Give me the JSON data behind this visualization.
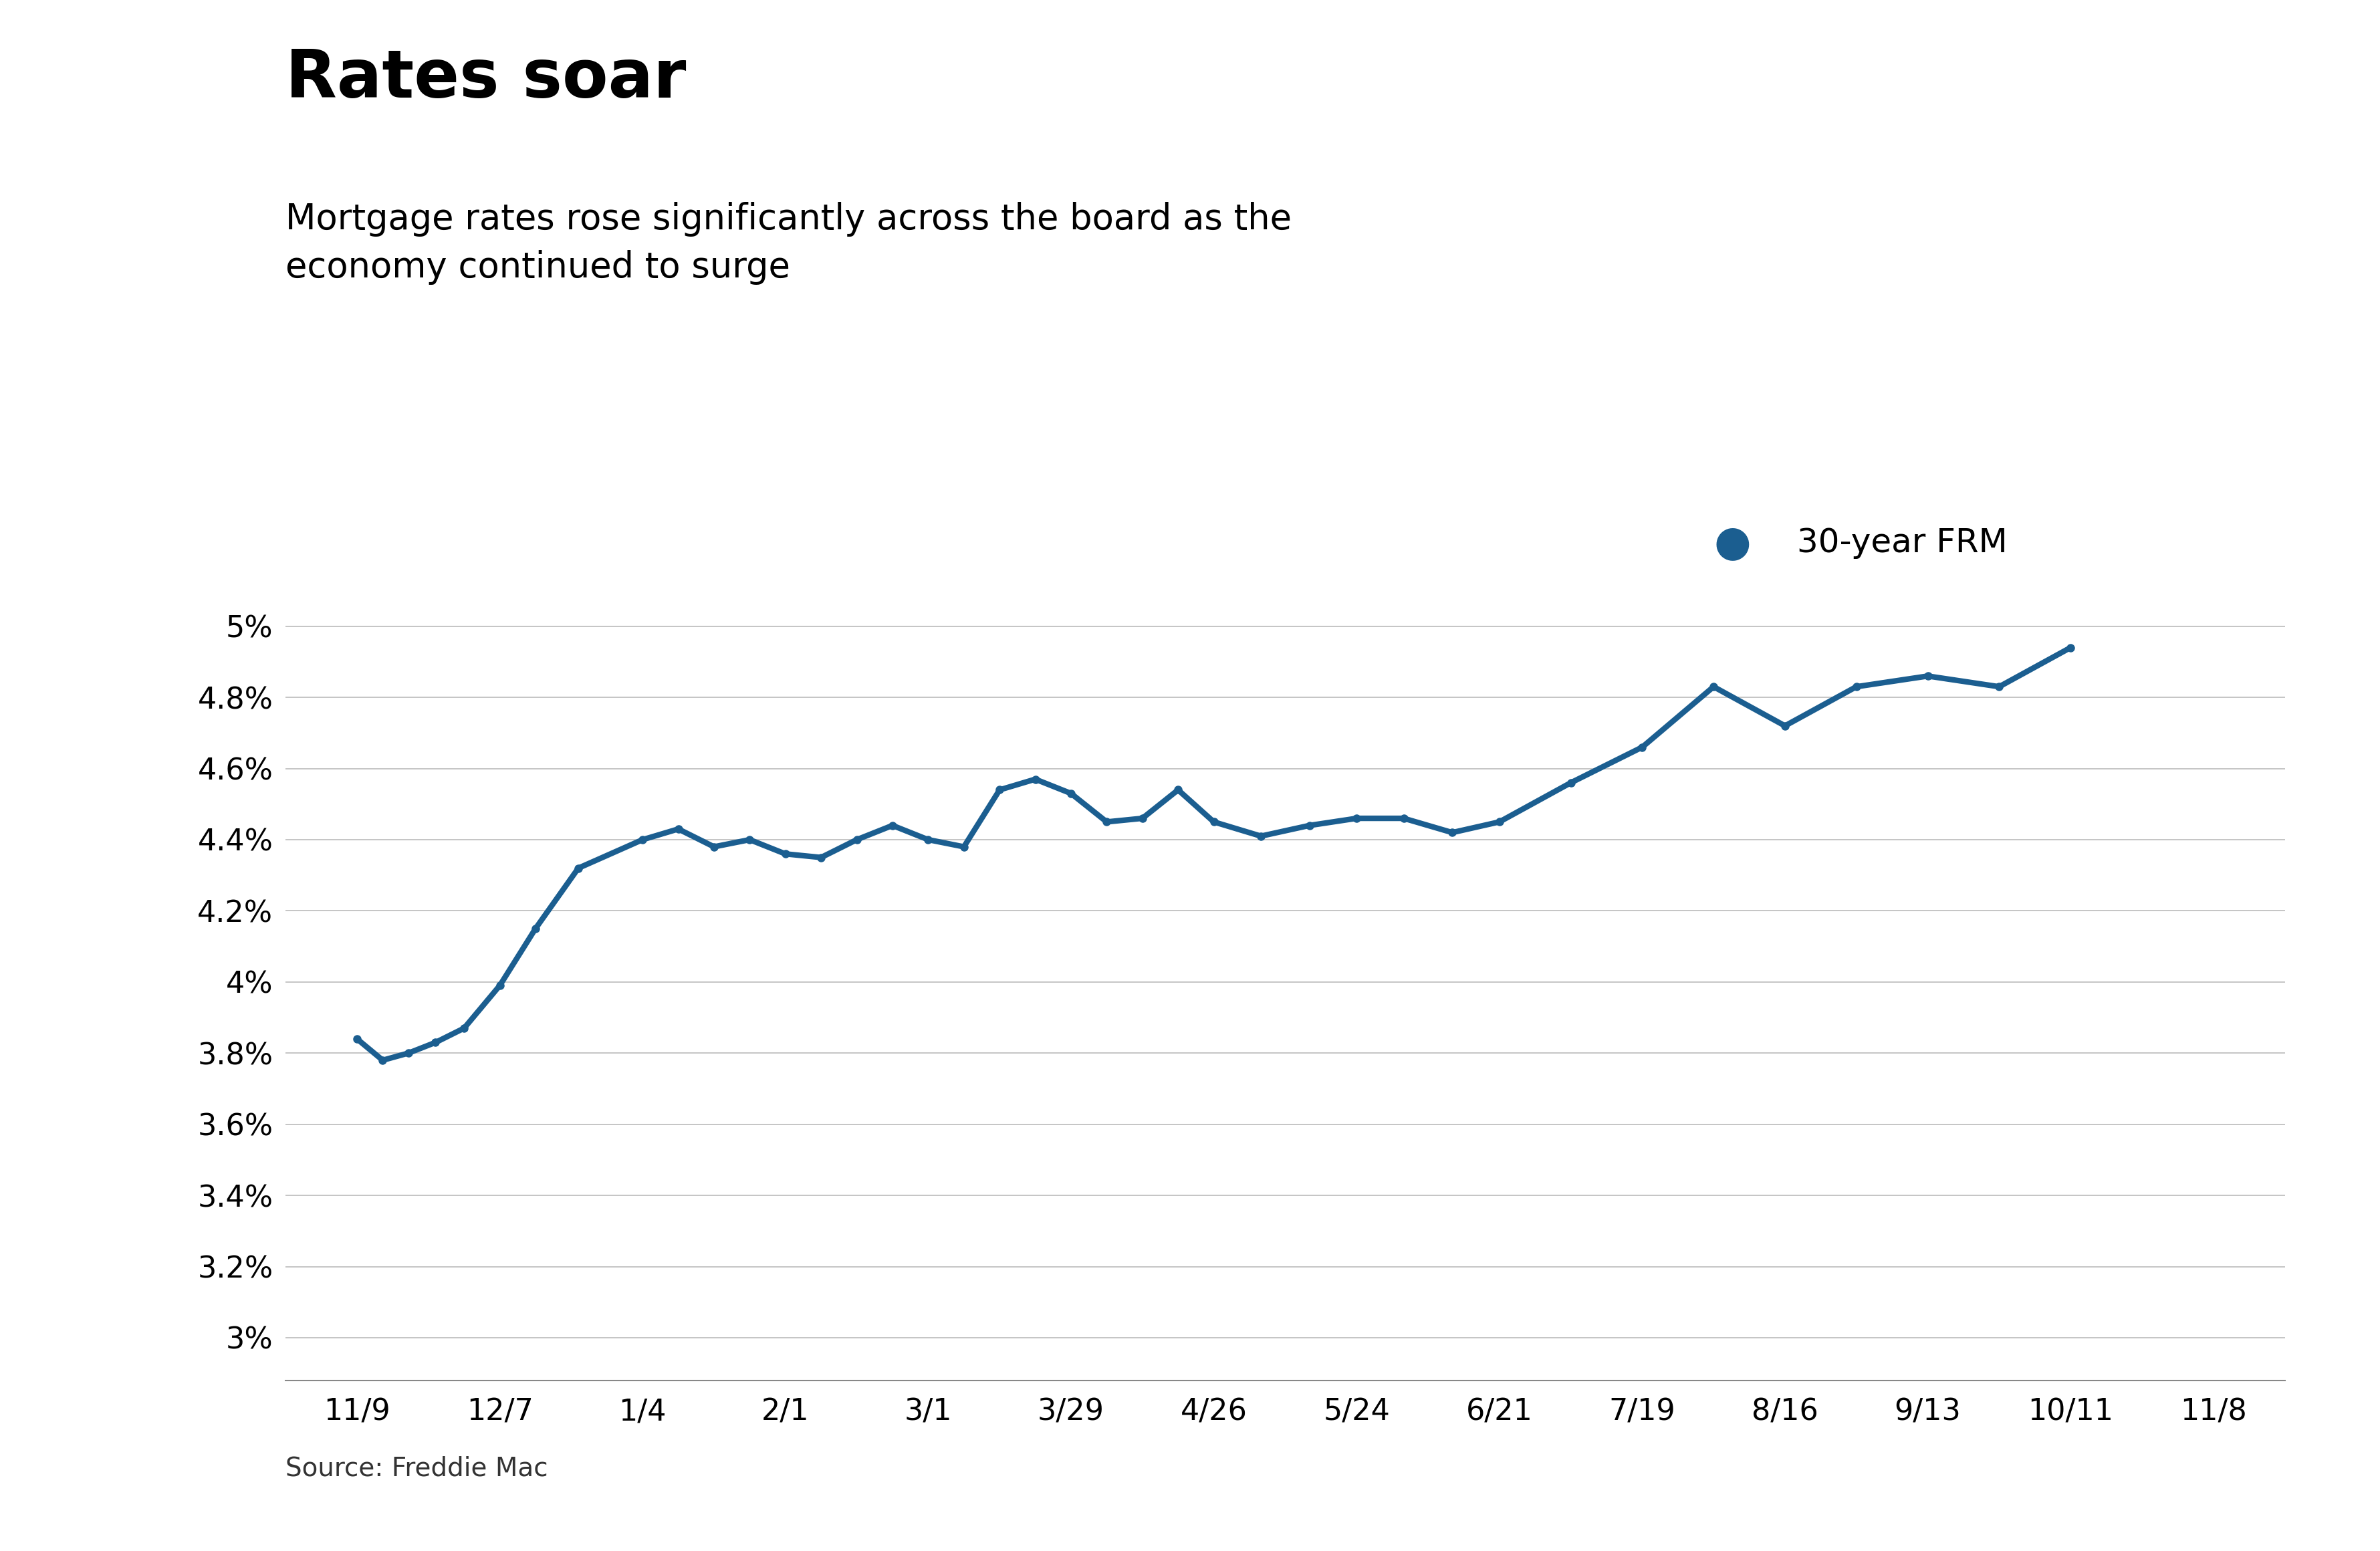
{
  "title": "Rates soar",
  "subtitle": "Mortgage rates rose significantly across the board as the\neconomy continued to surge",
  "source": "Source: Freddie Mac",
  "legend_label": "30-year FRM",
  "x_labels": [
    "11/9",
    "12/7",
    "1/4",
    "2/1",
    "3/1",
    "3/29",
    "4/26",
    "5/24",
    "6/21",
    "7/19",
    "8/16",
    "9/13",
    "10/11",
    "11/8"
  ],
  "y_ticks": [
    3.0,
    3.2,
    3.4,
    3.6,
    3.8,
    4.0,
    4.2,
    4.4,
    4.6,
    4.8,
    5.0
  ],
  "y_tick_labels": [
    "3%",
    "3.2%",
    "3.4%",
    "3.6%",
    "3.8%",
    "4%",
    "4.2%",
    "4.4%",
    "4.6%",
    "4.8%",
    "5%"
  ],
  "ylim": [
    2.88,
    5.06
  ],
  "line_color": "#1B5E90",
  "line_width": 6.0,
  "marker": "o",
  "marker_size": 8,
  "background_color": "#ffffff",
  "grid_color": "#bbbbbb",
  "title_fontsize": 72,
  "subtitle_fontsize": 38,
  "tick_fontsize": 32,
  "source_fontsize": 28,
  "legend_fontsize": 36,
  "y_values": [
    3.84,
    3.78,
    3.8,
    3.83,
    3.87,
    3.99,
    4.15,
    4.32,
    4.4,
    4.43,
    4.38,
    4.4,
    4.36,
    4.35,
    4.4,
    4.44,
    4.4,
    4.38,
    4.54,
    4.57,
    4.53,
    4.45,
    4.46,
    4.54,
    4.45,
    4.41,
    4.44,
    4.46,
    4.46,
    4.42,
    4.45,
    4.56,
    4.66,
    4.83,
    4.72,
    4.83,
    4.86,
    4.83,
    4.94
  ],
  "x_data": [
    0,
    0.18,
    0.36,
    0.55,
    0.75,
    1.0,
    1.25,
    1.55,
    2.0,
    2.25,
    2.5,
    2.75,
    3.0,
    3.25,
    3.5,
    3.75,
    4.0,
    4.25,
    4.5,
    4.75,
    5.0,
    5.25,
    5.5,
    5.75,
    6.0,
    6.33,
    6.67,
    7.0,
    7.33,
    7.67,
    8.0,
    8.5,
    9.0,
    9.5,
    10.0,
    10.5,
    11.0,
    11.5,
    12.0
  ]
}
